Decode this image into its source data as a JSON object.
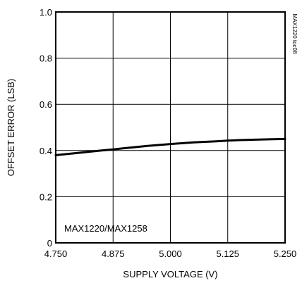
{
  "chart_data": {
    "type": "line",
    "title": "",
    "xlabel": "SUPPLY VOLTAGE (V)",
    "ylabel": "OFFSET ERROR (LSB)",
    "xlim": [
      4.75,
      5.25
    ],
    "ylim": [
      0,
      1.0
    ],
    "x_ticks": [
      4.75,
      4.875,
      5.0,
      5.125,
      5.25
    ],
    "x_tick_labels": [
      "4.750",
      "4.875",
      "5.000",
      "5.125",
      "5.250"
    ],
    "y_ticks": [
      0,
      0.2,
      0.4,
      0.6,
      0.8,
      1.0
    ],
    "y_tick_labels": [
      "0",
      "0.2",
      "0.4",
      "0.6",
      "0.8",
      "1.0"
    ],
    "grid": true,
    "series": [
      {
        "x": [
          4.75,
          4.8,
          4.85,
          4.875,
          4.9,
          4.95,
          5.0,
          5.05,
          5.1,
          5.125,
          5.15,
          5.2,
          5.25
        ],
        "y": [
          0.38,
          0.39,
          0.4,
          0.405,
          0.41,
          0.42,
          0.428,
          0.435,
          0.44,
          0.443,
          0.445,
          0.448,
          0.45
        ]
      }
    ],
    "annotations": {
      "device_label": "MAX1220/MAX1258",
      "side_code": "MAX1220 toc08"
    },
    "colors": {
      "line": "#000000",
      "grid": "#000000",
      "background": "#ffffff"
    }
  }
}
